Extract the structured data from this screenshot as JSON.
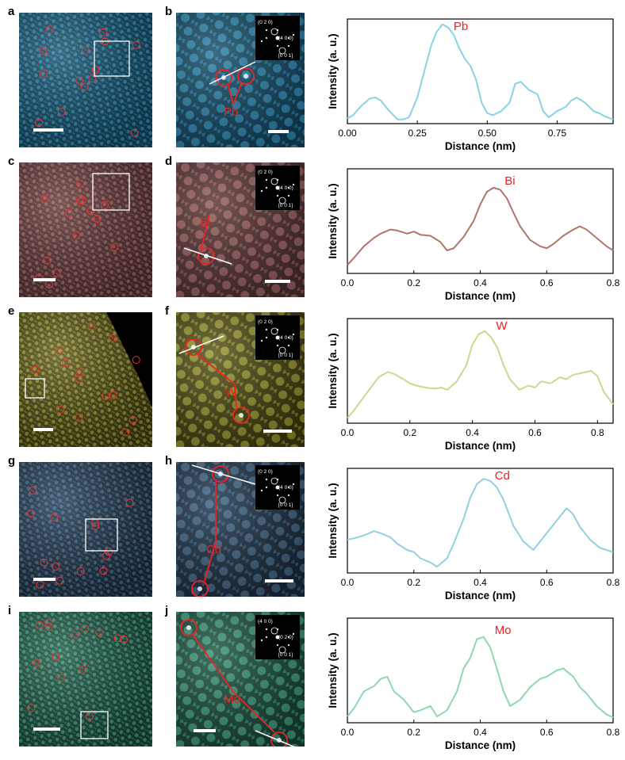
{
  "figure": {
    "rows": [
      {
        "element": "Pb",
        "letters": {
          "overview": "a",
          "zoom": "b"
        },
        "colors": {
          "dark": "#0e3346",
          "mid": "#2f7b9e",
          "bright": "#8fd4ee"
        },
        "overview_texture": "atomic-lattice",
        "zoom_texture": "atomic-lattice",
        "zoom_atom_label": "Pb",
        "fft_spots": [
          "(0 2 0)",
          "(4 0 0)",
          "[0 0 1]"
        ]
      },
      {
        "element": "Bi",
        "letters": {
          "overview": "c",
          "zoom": "d"
        },
        "colors": {
          "dark": "#3a2326",
          "mid": "#8a5b58",
          "bright": "#e8b6ae"
        },
        "overview_texture": "atomic-lattice",
        "zoom_texture": "atomic-lattice",
        "zoom_atom_label": "Bi",
        "fft_spots": [
          "(0 2 0)",
          "(4 0 0)",
          "[0 0 1]"
        ]
      },
      {
        "element": "W",
        "letters": {
          "overview": "e",
          "zoom": "f"
        },
        "colors": {
          "dark": "#2e2c0c",
          "mid": "#8b8a2d",
          "bright": "#f0ef9a"
        },
        "overview_texture": "atomic-lattice",
        "zoom_texture": "atomic-lattice",
        "zoom_atom_label": "W",
        "fft_spots": [
          "(0 2 0)",
          "(4 0 0)",
          "[0 0 1]"
        ]
      },
      {
        "element": "Cd",
        "letters": {
          "overview": "g",
          "zoom": "h"
        },
        "colors": {
          "dark": "#14202c",
          "mid": "#3f5d78",
          "bright": "#9cc4e4"
        },
        "overview_texture": "atomic-lattice",
        "zoom_texture": "atomic-lattice",
        "zoom_atom_label": "Cd",
        "fft_spots": [
          "(0 2 0)",
          "(4 0 0)",
          "[0 0 1]"
        ]
      },
      {
        "element": "Mo",
        "letters": {
          "overview": "i",
          "zoom": "j"
        },
        "colors": {
          "dark": "#11332a",
          "mid": "#3d8a72",
          "bright": "#9ee4c6"
        },
        "overview_texture": "atomic-lattice",
        "zoom_texture": "atomic-lattice",
        "zoom_atom_label": "Mo",
        "fft_spots": [
          "(4 0 0)",
          "(0 2 0)",
          "[0 0 1]"
        ]
      }
    ]
  },
  "chart_data": [
    {
      "type": "line",
      "label": "Pb",
      "color": "#88d3e4",
      "xlabel": "Distance (nm)",
      "ylabel": "Intensity (a. u.)",
      "xlim": [
        0,
        0.95
      ],
      "xticks": [
        "0.00",
        "0.25",
        "0.50",
        "0.75"
      ],
      "xtick_values": [
        0,
        0.25,
        0.5,
        0.75
      ],
      "ylim": [
        0,
        1
      ],
      "x": [
        0,
        0.02,
        0.05,
        0.08,
        0.1,
        0.12,
        0.15,
        0.18,
        0.2,
        0.22,
        0.25,
        0.28,
        0.3,
        0.32,
        0.34,
        0.36,
        0.38,
        0.4,
        0.42,
        0.44,
        0.46,
        0.48,
        0.5,
        0.52,
        0.55,
        0.58,
        0.6,
        0.62,
        0.65,
        0.68,
        0.7,
        0.72,
        0.75,
        0.78,
        0.8,
        0.82,
        0.85,
        0.88,
        0.9,
        0.92,
        0.95
      ],
      "y": [
        0.05,
        0.08,
        0.17,
        0.24,
        0.25,
        0.22,
        0.12,
        0.04,
        0.04,
        0.06,
        0.25,
        0.55,
        0.75,
        0.88,
        0.95,
        0.92,
        0.85,
        0.72,
        0.62,
        0.55,
        0.42,
        0.2,
        0.1,
        0.08,
        0.12,
        0.2,
        0.38,
        0.4,
        0.32,
        0.28,
        0.12,
        0.06,
        0.12,
        0.16,
        0.22,
        0.25,
        0.2,
        0.12,
        0.1,
        0.07,
        0.04
      ]
    },
    {
      "type": "line",
      "label": "Bi",
      "color": "#b0756b",
      "xlabel": "Distance (nm)",
      "ylabel": "Intensity (a. u.)",
      "xlim": [
        0,
        0.8
      ],
      "xticks": [
        "0.0",
        "0.2",
        "0.4",
        "0.6",
        "0.8"
      ],
      "xtick_values": [
        0,
        0.2,
        0.4,
        0.6,
        0.8
      ],
      "ylim": [
        0,
        1
      ],
      "x": [
        0,
        0.02,
        0.05,
        0.08,
        0.1,
        0.13,
        0.15,
        0.18,
        0.2,
        0.22,
        0.25,
        0.28,
        0.3,
        0.32,
        0.35,
        0.38,
        0.4,
        0.42,
        0.44,
        0.46,
        0.48,
        0.5,
        0.52,
        0.55,
        0.58,
        0.6,
        0.62,
        0.65,
        0.68,
        0.7,
        0.72,
        0.75,
        0.78,
        0.8
      ],
      "y": [
        0.08,
        0.15,
        0.26,
        0.34,
        0.38,
        0.42,
        0.41,
        0.38,
        0.4,
        0.37,
        0.36,
        0.3,
        0.22,
        0.24,
        0.35,
        0.5,
        0.66,
        0.78,
        0.82,
        0.8,
        0.72,
        0.58,
        0.45,
        0.32,
        0.26,
        0.24,
        0.28,
        0.36,
        0.42,
        0.45,
        0.42,
        0.34,
        0.26,
        0.22
      ]
    },
    {
      "type": "line",
      "label": "W",
      "color": "#cbd98c",
      "xlabel": "Distance (nm)",
      "ylabel": "Intensity (a. u.)",
      "xlim": [
        0,
        0.85
      ],
      "xticks": [
        "0.0",
        "0.2",
        "0.4",
        "0.6",
        "0.8"
      ],
      "xtick_values": [
        0,
        0.2,
        0.4,
        0.6,
        0.8
      ],
      "ylim": [
        0,
        1
      ],
      "x": [
        0,
        0.02,
        0.05,
        0.08,
        0.1,
        0.13,
        0.15,
        0.18,
        0.2,
        0.22,
        0.25,
        0.28,
        0.3,
        0.32,
        0.35,
        0.38,
        0.4,
        0.42,
        0.44,
        0.46,
        0.48,
        0.5,
        0.52,
        0.55,
        0.58,
        0.6,
        0.62,
        0.65,
        0.68,
        0.7,
        0.72,
        0.75,
        0.78,
        0.8,
        0.82,
        0.85
      ],
      "y": [
        0.05,
        0.12,
        0.24,
        0.36,
        0.44,
        0.49,
        0.47,
        0.42,
        0.38,
        0.36,
        0.34,
        0.33,
        0.34,
        0.32,
        0.4,
        0.55,
        0.75,
        0.85,
        0.88,
        0.82,
        0.72,
        0.55,
        0.42,
        0.32,
        0.36,
        0.34,
        0.4,
        0.38,
        0.44,
        0.42,
        0.46,
        0.48,
        0.5,
        0.45,
        0.3,
        0.18
      ]
    },
    {
      "type": "line",
      "label": "Cd",
      "color": "#92d0df",
      "xlabel": "Distance (nm)",
      "ylabel": "Intensity (a. u.)",
      "xlim": [
        0,
        0.8
      ],
      "xticks": [
        "0.0",
        "0.2",
        "0.4",
        "0.6",
        "0.8"
      ],
      "xtick_values": [
        0,
        0.2,
        0.4,
        0.6,
        0.8
      ],
      "ylim": [
        0,
        1
      ],
      "x": [
        0,
        0.02,
        0.05,
        0.08,
        0.1,
        0.13,
        0.15,
        0.18,
        0.2,
        0.22,
        0.25,
        0.27,
        0.3,
        0.32,
        0.35,
        0.37,
        0.39,
        0.41,
        0.43,
        0.45,
        0.47,
        0.5,
        0.53,
        0.56,
        0.58,
        0.6,
        0.63,
        0.66,
        0.68,
        0.7,
        0.73,
        0.76,
        0.78,
        0.8
      ],
      "y": [
        0.32,
        0.33,
        0.36,
        0.4,
        0.38,
        0.34,
        0.28,
        0.22,
        0.2,
        0.14,
        0.1,
        0.06,
        0.14,
        0.28,
        0.52,
        0.72,
        0.85,
        0.9,
        0.88,
        0.82,
        0.7,
        0.45,
        0.3,
        0.22,
        0.3,
        0.38,
        0.5,
        0.62,
        0.56,
        0.44,
        0.32,
        0.24,
        0.22,
        0.2
      ]
    },
    {
      "type": "line",
      "label": "Mo",
      "color": "#8fd7ac",
      "xlabel": "Distance (nm)",
      "ylabel": "Intensity (a. u.)",
      "xlim": [
        0,
        0.8
      ],
      "xticks": [
        "0.0",
        "0.2",
        "0.4",
        "0.6",
        "0.8"
      ],
      "xtick_values": [
        0,
        0.2,
        0.4,
        0.6,
        0.8
      ],
      "ylim": [
        0,
        1
      ],
      "x": [
        0,
        0.02,
        0.05,
        0.08,
        0.1,
        0.12,
        0.14,
        0.17,
        0.2,
        0.22,
        0.25,
        0.27,
        0.3,
        0.33,
        0.35,
        0.37,
        0.39,
        0.41,
        0.43,
        0.45,
        0.47,
        0.49,
        0.52,
        0.55,
        0.58,
        0.6,
        0.63,
        0.65,
        0.68,
        0.7,
        0.72,
        0.75,
        0.78,
        0.8
      ],
      "y": [
        0.06,
        0.14,
        0.3,
        0.35,
        0.42,
        0.44,
        0.3,
        0.22,
        0.1,
        0.12,
        0.16,
        0.06,
        0.12,
        0.3,
        0.52,
        0.62,
        0.8,
        0.82,
        0.72,
        0.52,
        0.3,
        0.16,
        0.22,
        0.34,
        0.42,
        0.44,
        0.5,
        0.52,
        0.44,
        0.34,
        0.28,
        0.16,
        0.08,
        0.05
      ]
    }
  ]
}
